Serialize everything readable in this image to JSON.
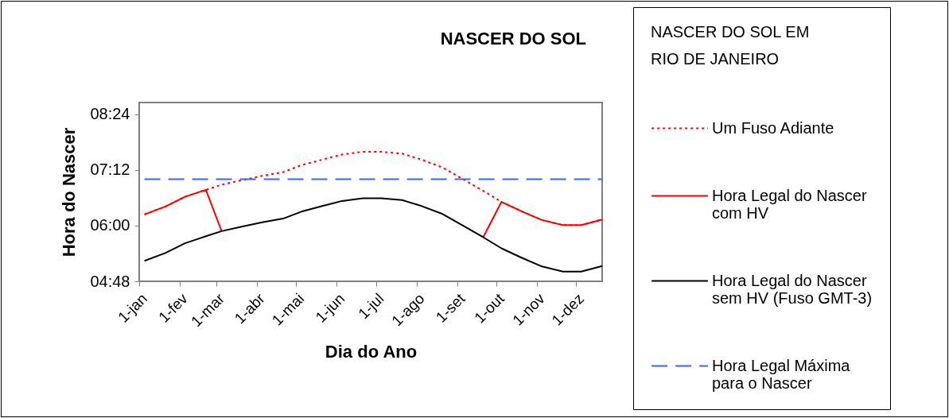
{
  "chart_data": {
    "type": "line",
    "title": "NASCER DO SOL",
    "xlabel": "Dia do Ano",
    "ylabel": "Hora do Nascer",
    "legend_title": "NASCER DO SOL EM RIO DE JANEIRO",
    "legend": "right",
    "grid": false,
    "x": [
      "--01-05",
      "--01-21",
      "--02-05",
      "--02-21",
      "--03-05",
      "--03-21",
      "--04-05",
      "--04-21",
      "--05-05",
      "--05-21",
      "--06-05",
      "--06-21",
      "--07-05",
      "--07-21",
      "--08-05",
      "--08-21",
      "--09-05",
      "--09-21",
      "--10-05",
      "--10-21",
      "--11-05",
      "--11-21",
      "--12-05",
      "--12-21"
    ],
    "xlim": [
      "--01-01",
      "--12-21"
    ],
    "xticks": [
      {
        "value": "--01-01",
        "label": "1-jan"
      },
      {
        "value": "--02-01",
        "label": "1-fev"
      },
      {
        "value": "--03-01",
        "label": "1-mar"
      },
      {
        "value": "--04-01",
        "label": "1-abr"
      },
      {
        "value": "--05-01",
        "label": "1-mai"
      },
      {
        "value": "--06-01",
        "label": "1-jun"
      },
      {
        "value": "--07-01",
        "label": "1-jul"
      },
      {
        "value": "--08-01",
        "label": "1-ago"
      },
      {
        "value": "--09-01",
        "label": "1-set"
      },
      {
        "value": "--10-01",
        "label": "1-out"
      },
      {
        "value": "--11-01",
        "label": "1-nov"
      },
      {
        "value": "--12-01",
        "label": "1-dez"
      }
    ],
    "ylim": [
      4.8,
      8.65
    ],
    "yticks": [
      {
        "value": 4.8,
        "label": "04:48"
      },
      {
        "value": 6,
        "label": "06:00"
      },
      {
        "value": 7.2,
        "label": "07:12"
      },
      {
        "value": 8.4,
        "label": "08:24"
      }
    ],
    "series": [
      {
        "name": "Um Fuso Adiante",
        "color": "#ff0000",
        "line_style": "dotted",
        "values": [
          6.24,
          6.41,
          6.62,
          6.77,
          6.88,
          6.98,
          7.07,
          7.15,
          7.3,
          7.42,
          7.53,
          7.59,
          7.59,
          7.55,
          7.42,
          7.25,
          7.01,
          6.75,
          6.51,
          6.3,
          6.12,
          6.01,
          6.01,
          6.13
        ]
      },
      {
        "name": "Hora Legal do Nascer com  HV",
        "color": "#ff0000",
        "line_style": "solid",
        "values": [
          6.24,
          6.41,
          6.62,
          6.77,
          5.88,
          null,
          null,
          null,
          null,
          null,
          null,
          null,
          null,
          null,
          null,
          null,
          null,
          5.75,
          6.51,
          6.3,
          6.12,
          6.01,
          6.01,
          6.13
        ]
      },
      {
        "name": "Hora Legal do Nascer sem HV (Fuso GMT-3)",
        "color": "#000000",
        "line_style": "solid",
        "values": [
          5.24,
          5.41,
          5.62,
          5.77,
          5.88,
          5.98,
          6.07,
          6.15,
          6.3,
          6.42,
          6.53,
          6.59,
          6.59,
          6.55,
          6.42,
          6.25,
          6.01,
          5.75,
          5.51,
          5.3,
          5.12,
          5.01,
          5.01,
          5.13
        ]
      },
      {
        "name": "Hora Legal Máxima para o Nascer",
        "color": "#3366ff",
        "line_style": "dashed",
        "x": [
          "--01-05",
          "--12-21"
        ],
        "values": [
          7.0,
          7.0
        ]
      }
    ]
  }
}
